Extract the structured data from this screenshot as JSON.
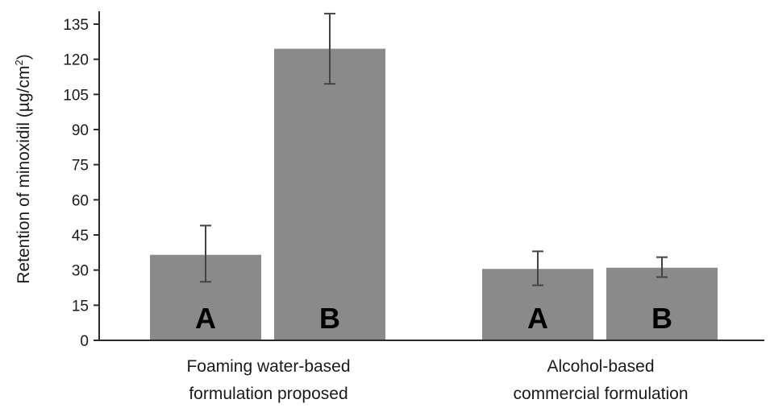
{
  "chart_data": {
    "type": "bar",
    "ylabel": "Retention of minoxidil (µg/cm²)",
    "ylabel_main": "Retention of minoxidil (µg/cm",
    "ylabel_sup": "2",
    "ylabel_end": ")",
    "ylim": [
      0,
      135
    ],
    "yticks": [
      0,
      15,
      30,
      45,
      60,
      75,
      90,
      105,
      120,
      135
    ],
    "grid": false,
    "bar_color": "#8a8a8a",
    "groups": [
      {
        "label_lines": [
          "Foaming water-based",
          "formulation proposed"
        ],
        "bars": [
          {
            "label": "A",
            "value": 36.5,
            "err_low": 25,
            "err_high": 49
          },
          {
            "label": "B",
            "value": 124.5,
            "err_low": 109.5,
            "err_high": 139.5
          }
        ]
      },
      {
        "label_lines": [
          "Alcohol-based",
          "commercial formulation"
        ],
        "bars": [
          {
            "label": "A",
            "value": 30.5,
            "err_low": 23.5,
            "err_high": 38
          },
          {
            "label": "B",
            "value": 31,
            "err_low": 27,
            "err_high": 35.5
          }
        ]
      }
    ]
  }
}
